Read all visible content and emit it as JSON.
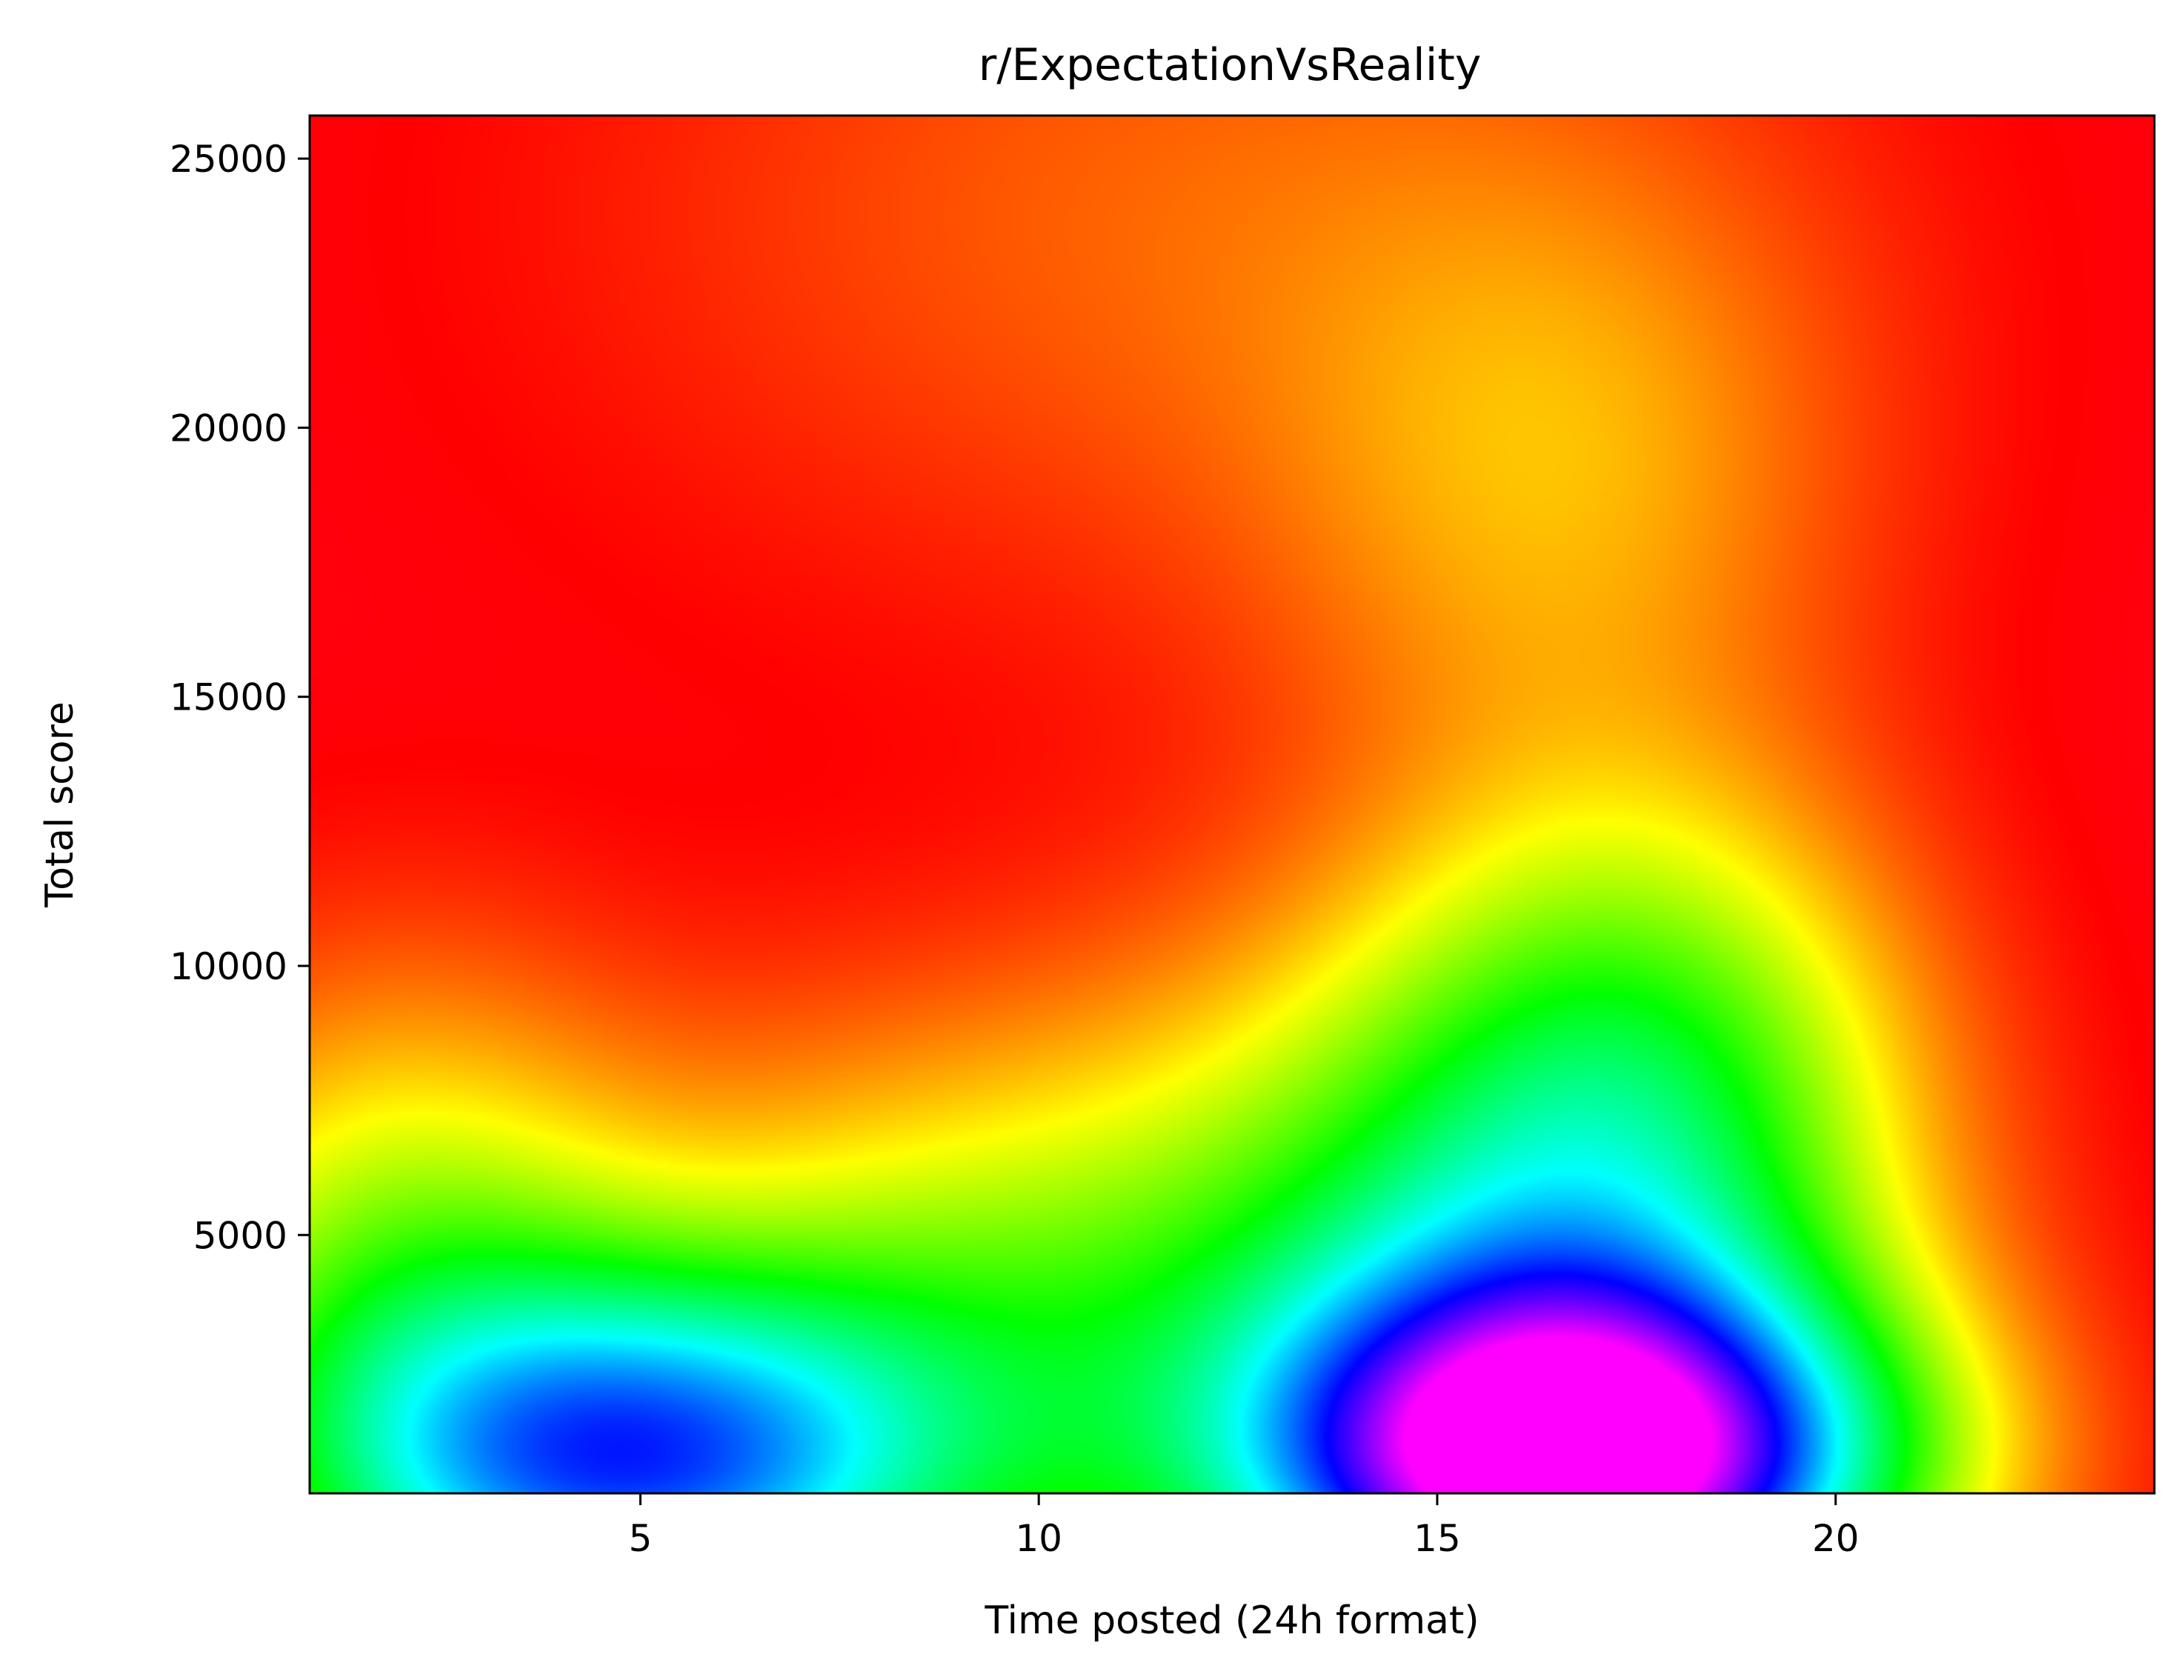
{
  "chart_data": {
    "type": "heatmap",
    "title": "r/ExpectationVsReality",
    "xlabel": "Time posted (24h format)",
    "ylabel": "Total score",
    "xlim": [
      0.85,
      24
    ],
    "ylim": [
      200,
      25800
    ],
    "xticks": [
      5,
      10,
      15,
      20
    ],
    "yticks": [
      5000,
      10000,
      15000,
      20000,
      25000
    ],
    "colormap": "gist_rainbow (red = low density, magenta = high density)",
    "grid": false,
    "legend": "none",
    "density_peaks": [
      {
        "x": 16.8,
        "y": 800,
        "level": "highest"
      },
      {
        "x": 5.0,
        "y": 700,
        "level": "medium-high"
      }
    ]
  }
}
